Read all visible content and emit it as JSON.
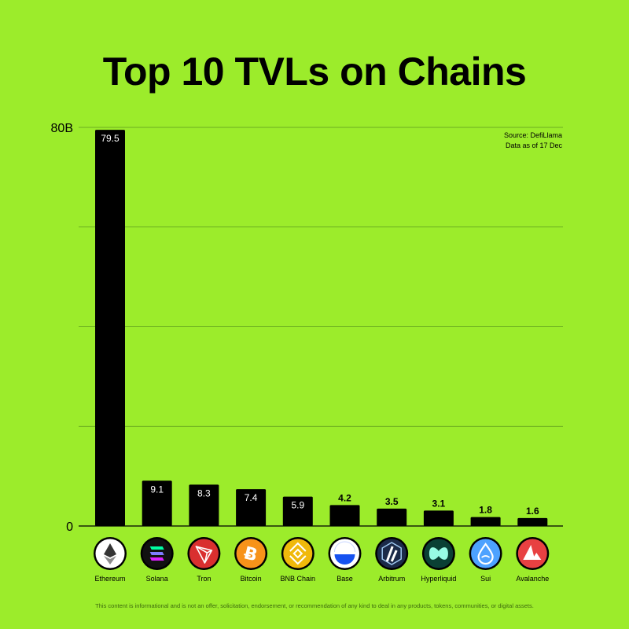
{
  "chart_data": {
    "type": "bar",
    "title": "Top 10 TVLs on Chains",
    "categories": [
      "Ethereum",
      "Solana",
      "Tron",
      "Bitcoin",
      "BNB Chain",
      "Base",
      "Arbitrum",
      "Hyperliquid",
      "Sui",
      "Avalanche"
    ],
    "values": [
      79.5,
      9.1,
      8.3,
      7.4,
      5.9,
      4.2,
      3.5,
      3.1,
      1.8,
      1.6
    ],
    "value_labels": [
      "79.5",
      "9.1",
      "8.3",
      "7.4",
      "5.9",
      "4.2",
      "3.5",
      "3.1",
      "1.8",
      "1.6"
    ],
    "icons": [
      "ethereum-icon",
      "solana-icon",
      "tron-icon",
      "bitcoin-icon",
      "bnb-chain-icon",
      "base-icon",
      "arbitrum-icon",
      "hyperliquid-icon",
      "sui-icon",
      "avalanche-icon"
    ],
    "icon_colors": [
      "#ffffff",
      "#111111",
      "#d92f2f",
      "#f7931a",
      "#f0b90b",
      "#ffffff",
      "#1b2a48",
      "#0a4034",
      "#4da2ff",
      "#e84142"
    ],
    "ylim": [
      0,
      80
    ],
    "y_ticks": [
      {
        "value": 80,
        "label": "80B"
      },
      {
        "value": 60,
        "label": ""
      },
      {
        "value": 40,
        "label": ""
      },
      {
        "value": 20,
        "label": ""
      },
      {
        "value": 0,
        "label": "0"
      }
    ],
    "grid": true,
    "xlabel": "",
    "ylabel": ""
  },
  "source": {
    "line1": "Source: DefiLlama",
    "line2": "Data as of 17 Dec"
  },
  "disclaimer": "This content is informational and is not an offer, solicitation, endorsement, or recommendation of any kind to deal in any products, tokens, communities, or digital assets.",
  "colors": {
    "background": "#9cec2b",
    "bar": "#000000",
    "grid": "#5b9a1e"
  }
}
